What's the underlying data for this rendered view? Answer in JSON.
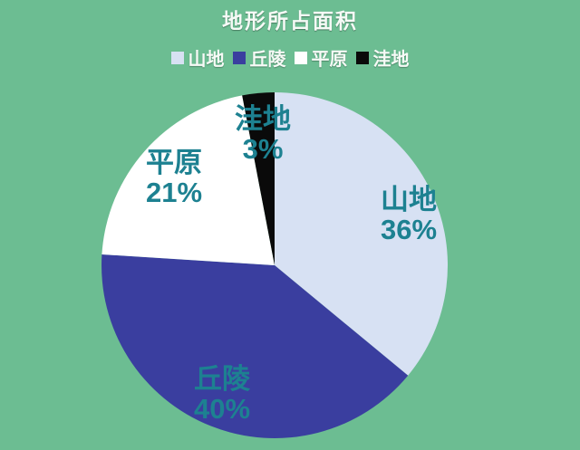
{
  "title": "地形所占面积",
  "colors": {
    "background": "#6cbd92",
    "title_text": "#f6faf6",
    "legend_text": "#f6faf6",
    "label_text": "#1d8191"
  },
  "chart_data": {
    "type": "pie",
    "title": "地形所占面积",
    "legend_position": "top",
    "start_angle_deg": 0,
    "direction": "clockwise",
    "slices": [
      {
        "label": "山地",
        "value": 36,
        "pct_label": "36%",
        "color": "#d7e1f3"
      },
      {
        "label": "丘陵",
        "value": 40,
        "pct_label": "40%",
        "color": "#3a3e9f"
      },
      {
        "label": "平原",
        "value": 21,
        "pct_label": "21%",
        "color": "#ffffff"
      },
      {
        "label": "洼地",
        "value": 3,
        "pct_label": "3%",
        "color": "#0a0a0a"
      }
    ]
  }
}
